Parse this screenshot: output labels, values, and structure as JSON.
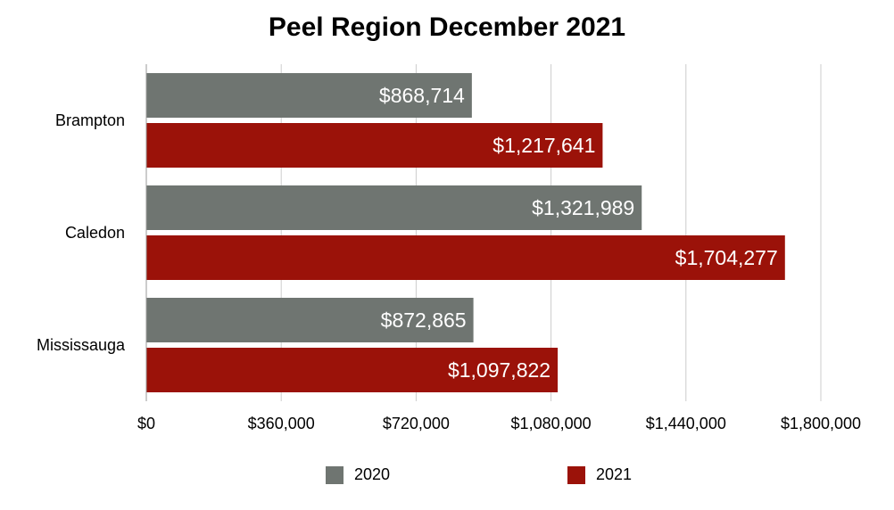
{
  "chart_data": {
    "type": "bar",
    "orientation": "horizontal",
    "title": "Peel Region December 2021",
    "xlabel": "",
    "ylabel": "",
    "categories": [
      "Brampton",
      "Caledon",
      "Mississauga"
    ],
    "series": [
      {
        "name": "2020",
        "color": "#6f7571",
        "values": [
          868714,
          1321989,
          872865
        ],
        "labels": [
          "$868,714",
          "$1,321,989",
          "$872,865"
        ]
      },
      {
        "name": "2021",
        "color": "#9b1209",
        "values": [
          1217641,
          1704277,
          1097822
        ],
        "labels": [
          "$1,217,641",
          "$1,704,277",
          "$1,097,822"
        ]
      }
    ],
    "xlim": [
      0,
      1800000
    ],
    "ticks": [
      0,
      360000,
      720000,
      1080000,
      1440000,
      1800000
    ],
    "tick_labels": [
      "$0",
      "$360,000",
      "$720,000",
      "$1,080,000",
      "$1,440,000",
      "$1,800,000"
    ],
    "grid": true,
    "legend_position": "bottom"
  }
}
